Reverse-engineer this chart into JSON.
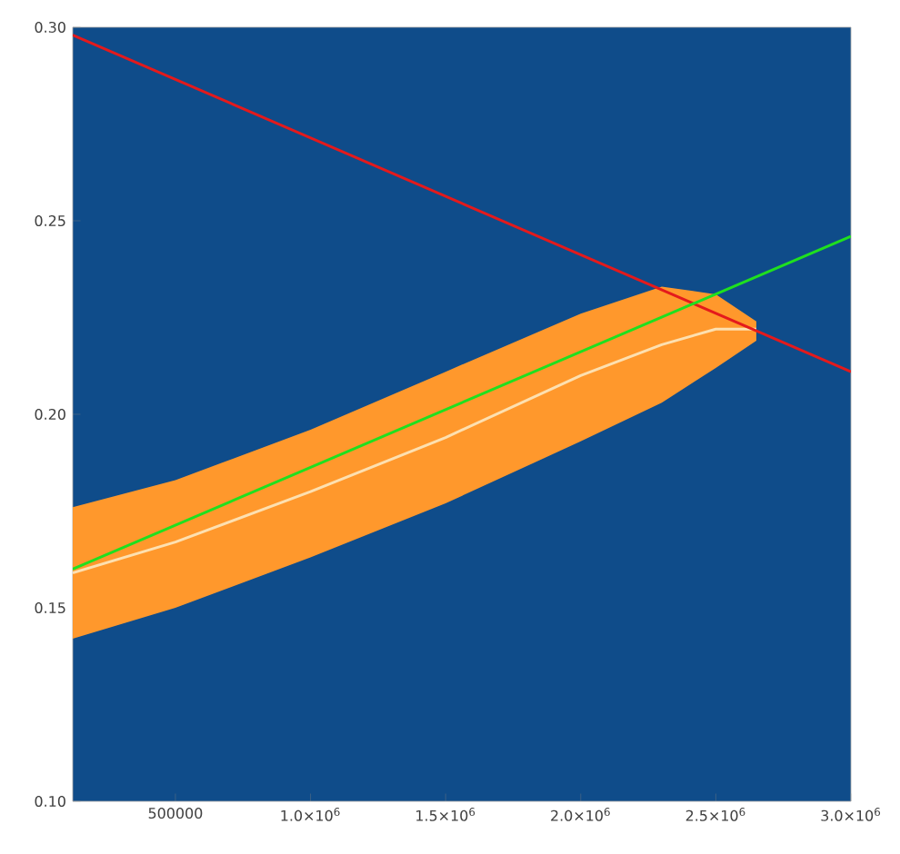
{
  "chart_data": {
    "type": "line",
    "series": [
      {
        "type": "line",
        "color": "#fde0b0",
        "x": [
          120000,
          500000,
          1000000,
          1500000,
          2000000,
          2300000,
          2500000,
          2650000
        ],
        "values": [
          0.159,
          0.167,
          0.18,
          0.194,
          0.21,
          0.218,
          0.222,
          0.222
        ],
        "lower": [
          0.142,
          0.15,
          0.163,
          0.177,
          0.193,
          0.203,
          0.212,
          0.219
        ],
        "upper": [
          0.176,
          0.183,
          0.196,
          0.211,
          0.226,
          0.233,
          0.231,
          0.224
        ]
      },
      {
        "color": "#e41a1c",
        "x": [
          120000,
          3000000
        ],
        "values": [
          0.298,
          0.211
        ]
      },
      {
        "color": "#1fe01f",
        "x": [
          120000,
          3000000
        ],
        "values": [
          0.16,
          0.246
        ]
      }
    ],
    "xlim": [
      120000,
      3000000
    ],
    "ylim": [
      0.1,
      0.3
    ],
    "xticks": [
      500000,
      {
        "value": 1000000,
        "label": "1.0×10$^{6}$"
      },
      {
        "value": 1500000,
        "label": "1.5×10$^{6}$"
      },
      {
        "value": 2000000,
        "label": "2.0×10$^{6}$"
      },
      {
        "value": 2500000,
        "label": "2.5×10$^{6}$"
      },
      {
        "value": 3000000,
        "label": "3.0×10$^{6}$"
      }
    ],
    "yticks": [
      {
        "value": 0.1,
        "label": "0.10"
      },
      {
        "value": 0.15,
        "label": "0.15"
      },
      {
        "value": 0.2,
        "label": "0.20"
      },
      {
        "value": 0.25,
        "label": "0.25"
      },
      {
        "value": 0.3,
        "label": "0.30"
      }
    ],
    "grid": false
  }
}
